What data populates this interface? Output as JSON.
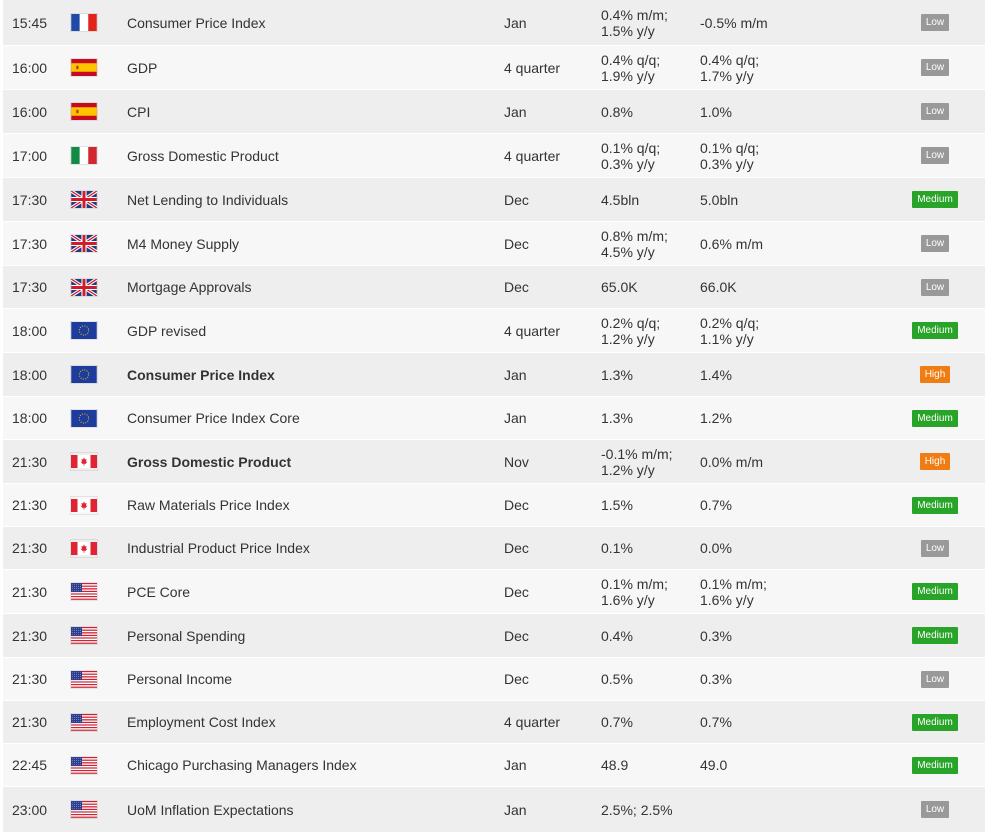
{
  "calendar": {
    "rows": [
      {
        "time": "15:45",
        "country": "France",
        "flag": "france-flag-icon",
        "event": "Consumer Price Index",
        "bold": false,
        "period": "Jan",
        "previous": [
          "0.4% m/m;",
          "1.5% y/y"
        ],
        "forecast": [
          "-0.5% m/m"
        ],
        "impact": "Low",
        "impact_level": "low"
      },
      {
        "time": "16:00",
        "country": "Spain",
        "flag": "spain-flag-icon",
        "event": "GDP",
        "bold": false,
        "period": "4 quarter",
        "previous": [
          "0.4% q/q;",
          "1.9% y/y"
        ],
        "forecast": [
          "0.4% q/q;",
          "1.7% y/y"
        ],
        "impact": "Low",
        "impact_level": "low"
      },
      {
        "time": "16:00",
        "country": "Spain",
        "flag": "spain-flag-icon",
        "event": "CPI",
        "bold": false,
        "period": "Jan",
        "previous": [
          "0.8%"
        ],
        "forecast": [
          "1.0%"
        ],
        "impact": "Low",
        "impact_level": "low"
      },
      {
        "time": "17:00",
        "country": "Italy",
        "flag": "italy-flag-icon",
        "event": "Gross Domestic Product",
        "bold": false,
        "period": "4 quarter",
        "previous": [
          "0.1% q/q;",
          "0.3% y/y"
        ],
        "forecast": [
          "0.1% q/q;",
          "0.3% y/y"
        ],
        "impact": "Low",
        "impact_level": "low"
      },
      {
        "time": "17:30",
        "country": "United Kingdom",
        "flag": "uk-flag-icon",
        "event": "Net Lending to Individuals",
        "bold": false,
        "period": "Dec",
        "previous": [
          "4.5bln"
        ],
        "forecast": [
          "5.0bln"
        ],
        "impact": "Medium",
        "impact_level": "medium"
      },
      {
        "time": "17:30",
        "country": "United Kingdom",
        "flag": "uk-flag-icon",
        "event": "M4 Money Supply",
        "bold": false,
        "period": "Dec",
        "previous": [
          "0.8% m/m;",
          "4.5% y/y"
        ],
        "forecast": [
          "0.6% m/m"
        ],
        "impact": "Low",
        "impact_level": "low"
      },
      {
        "time": "17:30",
        "country": "United Kingdom",
        "flag": "uk-flag-icon",
        "event": "Mortgage Approvals",
        "bold": false,
        "period": "Dec",
        "previous": [
          "65.0K"
        ],
        "forecast": [
          "66.0K"
        ],
        "impact": "Low",
        "impact_level": "low"
      },
      {
        "time": "18:00",
        "country": "Eurozone",
        "flag": "eu-flag-icon",
        "event": "GDP revised",
        "bold": false,
        "period": "4 quarter",
        "previous": [
          "0.2% q/q;",
          "1.2% y/y"
        ],
        "forecast": [
          "0.2% q/q;",
          "1.1% y/y"
        ],
        "impact": "Medium",
        "impact_level": "medium"
      },
      {
        "time": "18:00",
        "country": "Eurozone",
        "flag": "eu-flag-icon",
        "event": "Consumer Price Index",
        "bold": true,
        "period": "Jan",
        "previous": [
          "1.3%"
        ],
        "forecast": [
          "1.4%"
        ],
        "impact": "High",
        "impact_level": "high"
      },
      {
        "time": "18:00",
        "country": "Eurozone",
        "flag": "eu-flag-icon",
        "event": "Consumer Price Index Core",
        "bold": false,
        "period": "Jan",
        "previous": [
          "1.3%"
        ],
        "forecast": [
          "1.2%"
        ],
        "impact": "Medium",
        "impact_level": "medium"
      },
      {
        "time": "21:30",
        "country": "Canada",
        "flag": "canada-flag-icon",
        "event": "Gross Domestic Product",
        "bold": true,
        "period": "Nov",
        "previous": [
          "-0.1% m/m;",
          "1.2% y/y"
        ],
        "forecast": [
          "0.0% m/m"
        ],
        "impact": "High",
        "impact_level": "high"
      },
      {
        "time": "21:30",
        "country": "Canada",
        "flag": "canada-flag-icon",
        "event": "Raw Materials Price Index",
        "bold": false,
        "period": "Dec",
        "previous": [
          "1.5%"
        ],
        "forecast": [
          "0.7%"
        ],
        "impact": "Medium",
        "impact_level": "medium"
      },
      {
        "time": "21:30",
        "country": "Canada",
        "flag": "canada-flag-icon",
        "event": "Industrial Product Price Index",
        "bold": false,
        "period": "Dec",
        "previous": [
          "0.1%"
        ],
        "forecast": [
          "0.0%"
        ],
        "impact": "Low",
        "impact_level": "low"
      },
      {
        "time": "21:30",
        "country": "United States",
        "flag": "usa-flag-icon",
        "event": "PCE Core",
        "bold": false,
        "period": "Dec",
        "previous": [
          "0.1% m/m;",
          "1.6% y/y"
        ],
        "forecast": [
          "0.1% m/m;",
          "1.6% y/y"
        ],
        "impact": "Medium",
        "impact_level": "medium"
      },
      {
        "time": "21:30",
        "country": "United States",
        "flag": "usa-flag-icon",
        "event": "Personal Spending",
        "bold": false,
        "period": "Dec",
        "previous": [
          "0.4%"
        ],
        "forecast": [
          "0.3%"
        ],
        "impact": "Medium",
        "impact_level": "medium"
      },
      {
        "time": "21:30",
        "country": "United States",
        "flag": "usa-flag-icon",
        "event": "Personal Income",
        "bold": false,
        "period": "Dec",
        "previous": [
          "0.5%"
        ],
        "forecast": [
          "0.3%"
        ],
        "impact": "Low",
        "impact_level": "low"
      },
      {
        "time": "21:30",
        "country": "United States",
        "flag": "usa-flag-icon",
        "event": "Employment Cost Index",
        "bold": false,
        "period": "4 quarter",
        "previous": [
          "0.7%"
        ],
        "forecast": [
          "0.7%"
        ],
        "impact": "Medium",
        "impact_level": "medium"
      },
      {
        "time": "22:45",
        "country": "United States",
        "flag": "usa-flag-icon",
        "event": "Chicago Purchasing Managers Index",
        "bold": false,
        "period": "Jan",
        "previous": [
          "48.9"
        ],
        "forecast": [
          "49.0"
        ],
        "impact": "Medium",
        "impact_level": "medium"
      },
      {
        "time": "23:00",
        "country": "United States",
        "flag": "usa-flag-icon",
        "event": "UoM Inflation Expectations",
        "bold": false,
        "period": "Jan",
        "previous": [
          "2.5%; 2.5%"
        ],
        "forecast": [],
        "impact": "Low",
        "impact_level": "low"
      }
    ]
  },
  "colors": {
    "row_even": "#eeeeee",
    "row_odd": "#f7f7f7",
    "impact_low": "#999999",
    "impact_medium": "#28a428",
    "impact_high": "#f07d14"
  }
}
